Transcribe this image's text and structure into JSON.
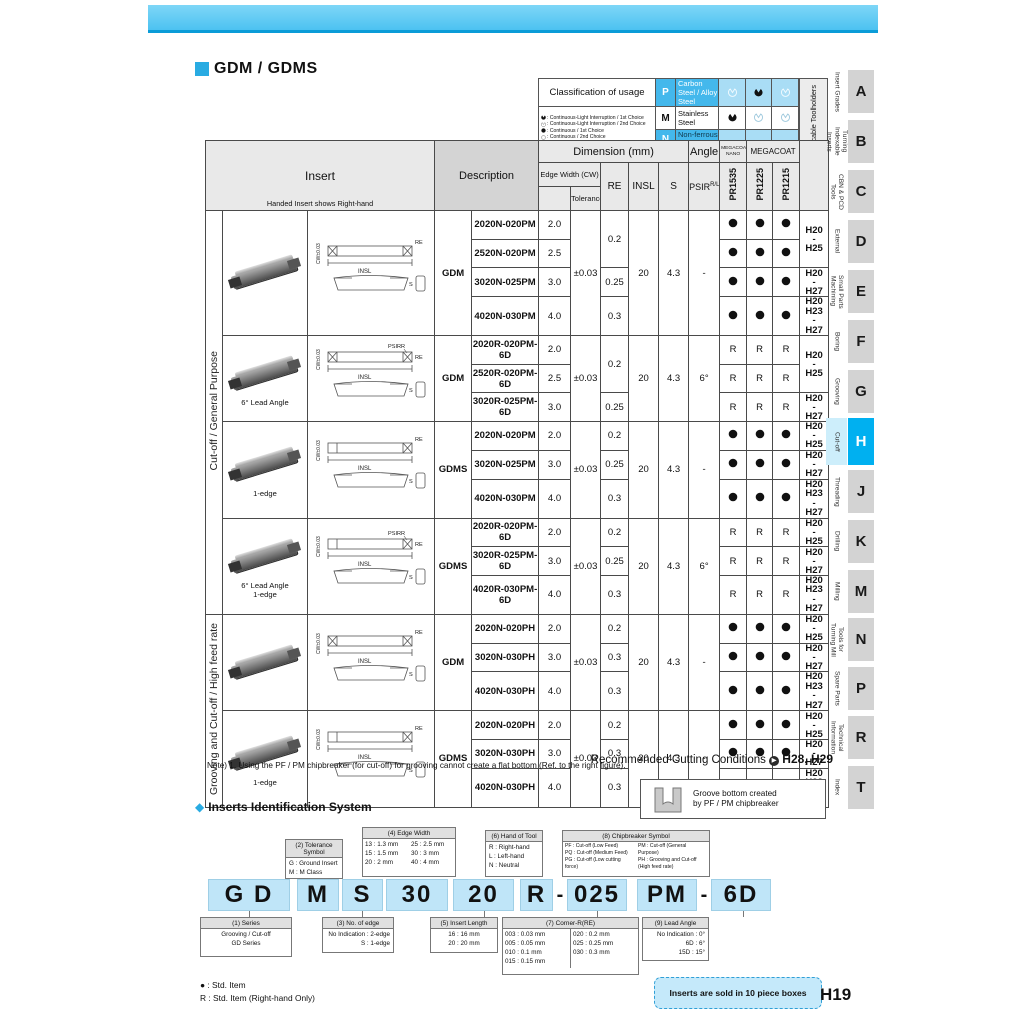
{
  "page": {
    "title": "GDM / GDMS",
    "number": "H19"
  },
  "classification": {
    "title": "Classification of usage",
    "legend": [
      {
        "sym": "half-filled",
        "text": ": Continuous-Light Interruption / 1st Choice"
      },
      {
        "sym": "half-open",
        "text": ": Continuous-Light Interruption / 2nd Choice"
      },
      {
        "sym": "dot-filled",
        "text": ": Continuous / 1st Choice"
      },
      {
        "sym": "dot-open",
        "text": ": Continuous / 2nd Choice"
      }
    ],
    "rows": [
      {
        "code": "P",
        "material": "Carbon Steel / Alloy Steel",
        "cyan": true,
        "symbols": [
          "half-open",
          "half-filled",
          "half-open"
        ]
      },
      {
        "code": "M",
        "material": "Stainless Steel",
        "cyan": false,
        "symbols": [
          "half-filled",
          "half-open",
          "half-open"
        ]
      },
      {
        "code": "N",
        "material": "Non-ferrous Metals",
        "cyan": true,
        "symbols": [
          "",
          "",
          ""
        ]
      }
    ]
  },
  "table": {
    "headers": {
      "insert": "Insert",
      "insert_sub": "Handed Insert shows Right-hand",
      "description": "Description",
      "dimension": "Dimension (mm)",
      "angle": "Angle",
      "megacoat_nano": "MEGACOAT NANO",
      "megacoat": "MEGACOAT",
      "edge_width": "Edge Width (CW)",
      "tolerance": "Tolerance",
      "re": "RE",
      "insl": "INSL",
      "s": "S",
      "psir": "PSIR",
      "psir_sup": "R/L",
      "grades": [
        "PR1535",
        "PR1225",
        "PR1215"
      ],
      "see_page": "See Page for Applicable Toolholders"
    },
    "sections": [
      {
        "label": "Cut-off / General Purpose",
        "groups": [
          0,
          1,
          2,
          3
        ]
      },
      {
        "label": "Grooving and Cut-off / High feed rate",
        "groups": [
          4,
          5
        ]
      }
    ],
    "groups": [
      {
        "series": "GDM",
        "caption": [],
        "diagram": {
          "cw": "CW±0.03",
          "re": "RE",
          "insl": "INSL",
          "s": "S",
          "edges": 2
        },
        "rows": [
          {
            "part": "2020N-020PM",
            "cw": "2.0"
          },
          {
            "part": "2520N-020PM",
            "cw": "2.5"
          },
          {
            "part": "3020N-025PM",
            "cw": "3.0"
          },
          {
            "part": "4020N-030PM",
            "cw": "4.0"
          }
        ],
        "re": [
          {
            "value": "0.2",
            "span": 2
          },
          {
            "value": "0.25",
            "span": 1
          },
          {
            "value": "0.3",
            "span": 1
          }
        ],
        "tolerance": "±0.03",
        "insl": "20",
        "s": "4.3",
        "psir": "-",
        "symbol": "dot",
        "pages": [
          {
            "lines": [
              "H20",
              "-",
              "H25"
            ],
            "span": 2,
            "small": false
          },
          {
            "lines": [
              "H20",
              "-",
              "H27"
            ],
            "span": 1,
            "small": false
          },
          {
            "lines": [
              "H20",
              "H23",
              "-",
              "H27"
            ],
            "span": 1,
            "small": true
          }
        ]
      },
      {
        "series": "GDM",
        "caption": [
          "6° Lead Angle"
        ],
        "diagram": {
          "cw": "CW±0.03",
          "re": "RE",
          "insl": "INSL",
          "s": "S",
          "psirr": "PSIRR",
          "edges": 2
        },
        "rows": [
          {
            "part": "2020R-020PM-6D",
            "cw": "2.0"
          },
          {
            "part": "2520R-020PM-6D",
            "cw": "2.5"
          },
          {
            "part": "3020R-025PM-6D",
            "cw": "3.0"
          }
        ],
        "re": [
          {
            "value": "0.2",
            "span": 2
          },
          {
            "value": "0.25",
            "span": 1
          }
        ],
        "tolerance": "±0.03",
        "insl": "20",
        "s": "4.3",
        "psir": "6°",
        "symbol": "R",
        "pages": [
          {
            "lines": [
              "H20",
              "-",
              "H25"
            ],
            "span": 2,
            "small": false
          },
          {
            "lines": [
              "H20",
              "-",
              "H27"
            ],
            "span": 1,
            "small": false
          }
        ]
      },
      {
        "series": "GDMS",
        "caption": [
          "1-edge"
        ],
        "diagram": {
          "cw": "CW±0.03",
          "re": "RE",
          "insl": "INSL",
          "s": "S",
          "edges": 1
        },
        "rows": [
          {
            "part": "2020N-020PM",
            "cw": "2.0"
          },
          {
            "part": "3020N-025PM",
            "cw": "3.0"
          },
          {
            "part": "4020N-030PM",
            "cw": "4.0"
          }
        ],
        "re": [
          {
            "value": "0.2",
            "span": 1
          },
          {
            "value": "0.25",
            "span": 1
          },
          {
            "value": "0.3",
            "span": 1
          }
        ],
        "tolerance": "±0.03",
        "insl": "20",
        "s": "4.3",
        "psir": "-",
        "symbol": "dot",
        "pages": [
          {
            "lines": [
              "H20",
              "-",
              "H25"
            ],
            "span": 1,
            "small": false
          },
          {
            "lines": [
              "H20",
              "-",
              "H27"
            ],
            "span": 1,
            "small": false
          },
          {
            "lines": [
              "H20",
              "H23",
              "-",
              "H27"
            ],
            "span": 1,
            "small": true
          }
        ]
      },
      {
        "series": "GDMS",
        "caption": [
          "6° Lead Angle",
          "1-edge"
        ],
        "diagram": {
          "cw": "CW±0.03",
          "re": "RE",
          "insl": "INSL",
          "s": "S",
          "psirr": "PSIRR",
          "edges": 1
        },
        "rows": [
          {
            "part": "2020R-020PM-6D",
            "cw": "2.0"
          },
          {
            "part": "3020R-025PM-6D",
            "cw": "3.0"
          },
          {
            "part": "4020R-030PM-6D",
            "cw": "4.0"
          }
        ],
        "re": [
          {
            "value": "0.2",
            "span": 1
          },
          {
            "value": "0.25",
            "span": 1
          },
          {
            "value": "0.3",
            "span": 1
          }
        ],
        "tolerance": "±0.03",
        "insl": "20",
        "s": "4.3",
        "psir": "6°",
        "symbol": "R",
        "pages": [
          {
            "lines": [
              "H20",
              "-",
              "H25"
            ],
            "span": 1,
            "small": false
          },
          {
            "lines": [
              "H20",
              "-",
              "H27"
            ],
            "span": 1,
            "small": false
          },
          {
            "lines": [
              "H20",
              "H23",
              "-",
              "H27"
            ],
            "span": 1,
            "small": true
          }
        ]
      },
      {
        "series": "GDM",
        "caption": [],
        "diagram": {
          "cw": "CW±0.03",
          "re": "RE",
          "insl": "INSL",
          "s": "S",
          "edges": 2
        },
        "rows": [
          {
            "part": "2020N-020PH",
            "cw": "2.0"
          },
          {
            "part": "3020N-030PH",
            "cw": "3.0"
          },
          {
            "part": "4020N-030PH",
            "cw": "4.0"
          }
        ],
        "re": [
          {
            "value": "0.2",
            "span": 1
          },
          {
            "value": "0.3",
            "span": 1
          },
          {
            "value": "0.3",
            "span": 1
          }
        ],
        "tolerance": "±0.03",
        "insl": "20",
        "s": "4.3",
        "psir": "-",
        "symbol": "dot",
        "pages": [
          {
            "lines": [
              "H20",
              "-",
              "H25"
            ],
            "span": 1,
            "small": false
          },
          {
            "lines": [
              "H20",
              "-",
              "H27"
            ],
            "span": 1,
            "small": false
          },
          {
            "lines": [
              "H20",
              "H23",
              "-",
              "H27"
            ],
            "span": 1,
            "small": true
          }
        ]
      },
      {
        "series": "GDMS",
        "caption": [
          "1-edge"
        ],
        "diagram": {
          "cw": "CW±0.03",
          "re": "RE",
          "insl": "INSL",
          "s": "S",
          "edges": 1
        },
        "rows": [
          {
            "part": "2020N-020PH",
            "cw": "2.0"
          },
          {
            "part": "3020N-030PH",
            "cw": "3.0"
          },
          {
            "part": "4020N-030PH",
            "cw": "4.0"
          }
        ],
        "re": [
          {
            "value": "0.2",
            "span": 1
          },
          {
            "value": "0.3",
            "span": 1
          },
          {
            "value": "0.3",
            "span": 1
          }
        ],
        "tolerance": "±0.03",
        "insl": "20",
        "s": "4.3",
        "psir": "-",
        "symbol": "dot",
        "pages": [
          {
            "lines": [
              "H20",
              "-",
              "H25"
            ],
            "span": 1,
            "small": false
          },
          {
            "lines": [
              "H20",
              "-",
              "H27"
            ],
            "span": 1,
            "small": false
          },
          {
            "lines": [
              "H20",
              "H23",
              "-",
              "H27"
            ],
            "span": 1,
            "small": true
          }
        ]
      }
    ]
  },
  "footnotes": {
    "note": "Note) 1. Using the PF / PM chipbreaker (for cut-off) for grooving cannot create a flat bottom (Ref. to the right figure).",
    "recommended": "Recommended Cutting Conditions",
    "recommended_pages": "H28, H29",
    "groove_box": "Groove bottom created\nby PF / PM chipbreaker",
    "std_item": "● : Std. Item",
    "std_item_r": "R : Std. Item (Right-hand Only)",
    "sold_box": "Inserts are sold in 10 piece boxes"
  },
  "id_system": {
    "title": "Inserts Identification System",
    "blocks": [
      "G D",
      "M",
      "S",
      "30",
      "20",
      "R",
      "-",
      "025",
      "PM",
      "-",
      "6D"
    ],
    "top_boxes": [
      {
        "num": "(2) Tolerance Symbol",
        "lines": [
          "G : Ground Insert",
          "M : M Class"
        ]
      },
      {
        "num": "(4) Edge Width",
        "cols": [
          [
            "13 : 1.3 mm",
            "15 : 1.5 mm",
            "20 : 2 mm"
          ],
          [
            "25 : 2.5 mm",
            "30 : 3 mm",
            "40 : 4 mm"
          ]
        ]
      },
      {
        "num": "(6) Hand of Tool",
        "lines": [
          "R : Right-hand",
          "L : Left-hand",
          "N : Neutral"
        ]
      },
      {
        "num": "(8) Chipbreaker Symbol",
        "cols": [
          [
            "PF : Cut-off (Low Feed)",
            "PQ : Cut-off (Medium Feed)",
            "PG : Cut-off (Low cutting force)"
          ],
          [
            "PM : Cut-off (General Purpose)",
            "PH : Grooving and Cut-off (High feed rate)"
          ]
        ]
      }
    ],
    "bottom_boxes": [
      {
        "num": "(1) Series",
        "lines": [
          "Grooving / Cut-off",
          "GD Series"
        ],
        "align": "center"
      },
      {
        "num": "(3) No. of edge",
        "lines": [
          "No Indication : 2-edge",
          "S : 1-edge"
        ],
        "align": "right"
      },
      {
        "num": "(5) Insert Length",
        "lines": [
          "16 : 16 mm",
          "20 : 20 mm"
        ],
        "align": "center"
      },
      {
        "num": "(7) Corner-R(RE)",
        "cols": [
          [
            "003 : 0.03 mm",
            "005 : 0.05 mm",
            "010 : 0.1 mm",
            "015 : 0.15 mm"
          ],
          [
            "020 : 0.2 mm",
            "025 : 0.25 mm",
            "030 : 0.3 mm"
          ]
        ]
      },
      {
        "num": "(9) Lead Angle",
        "lines": [
          "No Indication : 0°",
          "6D : 6°",
          "15D : 15°"
        ],
        "align": "right"
      }
    ]
  },
  "sidebar": [
    {
      "letter": "A",
      "label": "Insert Grades",
      "active": false
    },
    {
      "letter": "B",
      "label": "Turning\nIndexable Inserts",
      "active": false
    },
    {
      "letter": "C",
      "label": "CBN & PCD Tools",
      "active": false
    },
    {
      "letter": "D",
      "label": "External",
      "active": false
    },
    {
      "letter": "E",
      "label": "Small Parts\nMachining",
      "active": false
    },
    {
      "letter": "F",
      "label": "Boring",
      "active": false
    },
    {
      "letter": "G",
      "label": "Grooving",
      "active": false
    },
    {
      "letter": "H",
      "label": "Cut-off",
      "active": true
    },
    {
      "letter": "J",
      "label": "Threading",
      "active": false
    },
    {
      "letter": "K",
      "label": "Drilling",
      "active": false
    },
    {
      "letter": "M",
      "label": "Milling",
      "active": false
    },
    {
      "letter": "N",
      "label": "Tools for\nTurning Mill",
      "active": false
    },
    {
      "letter": "P",
      "label": "Spare Parts",
      "active": false
    },
    {
      "letter": "R",
      "label": "Technical\nInformation",
      "active": false
    },
    {
      "letter": "T",
      "label": "Index",
      "active": false
    }
  ]
}
